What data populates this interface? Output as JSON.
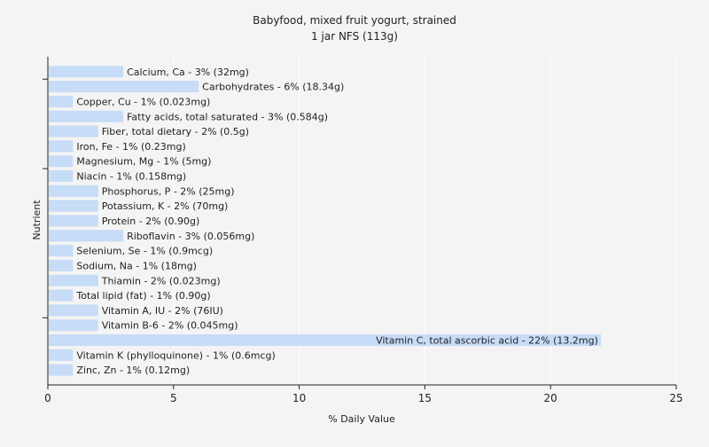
{
  "chart_data": {
    "type": "bar",
    "orientation": "horizontal",
    "title": "Babyfood, mixed fruit yogurt, strained",
    "subtitle": "1 jar NFS (113g)",
    "xlabel": "% Daily Value",
    "ylabel": "Nutrient",
    "xlim": [
      0,
      25
    ],
    "xticks": [
      0,
      5,
      10,
      15,
      20,
      25
    ],
    "grid": true,
    "bar_color": "#c6dcf7",
    "categories": [
      "Calcium, Ca - 3% (32mg)",
      "Carbohydrates - 6% (18.34g)",
      "Copper, Cu - 1% (0.023mg)",
      "Fatty acids, total saturated - 3% (0.584g)",
      "Fiber, total dietary - 2% (0.5g)",
      "Iron, Fe - 1% (0.23mg)",
      "Magnesium, Mg - 1% (5mg)",
      "Niacin - 1% (0.158mg)",
      "Phosphorus, P - 2% (25mg)",
      "Potassium, K - 2% (70mg)",
      "Protein - 2% (0.90g)",
      "Riboflavin - 3% (0.056mg)",
      "Selenium, Se - 1% (0.9mcg)",
      "Sodium, Na - 1% (18mg)",
      "Thiamin - 2% (0.023mg)",
      "Total lipid (fat) - 1% (0.90g)",
      "Vitamin A, IU - 2% (76IU)",
      "Vitamin B-6 - 2% (0.045mg)",
      "Vitamin C, total ascorbic acid - 22% (13.2mg)",
      "Vitamin K (phylloquinone) - 1% (0.6mcg)",
      "Zinc, Zn - 1% (0.12mg)"
    ],
    "values": [
      3,
      6,
      1,
      3,
      2,
      1,
      1,
      1,
      2,
      2,
      2,
      3,
      1,
      1,
      2,
      1,
      2,
      2,
      22,
      1,
      1
    ]
  }
}
